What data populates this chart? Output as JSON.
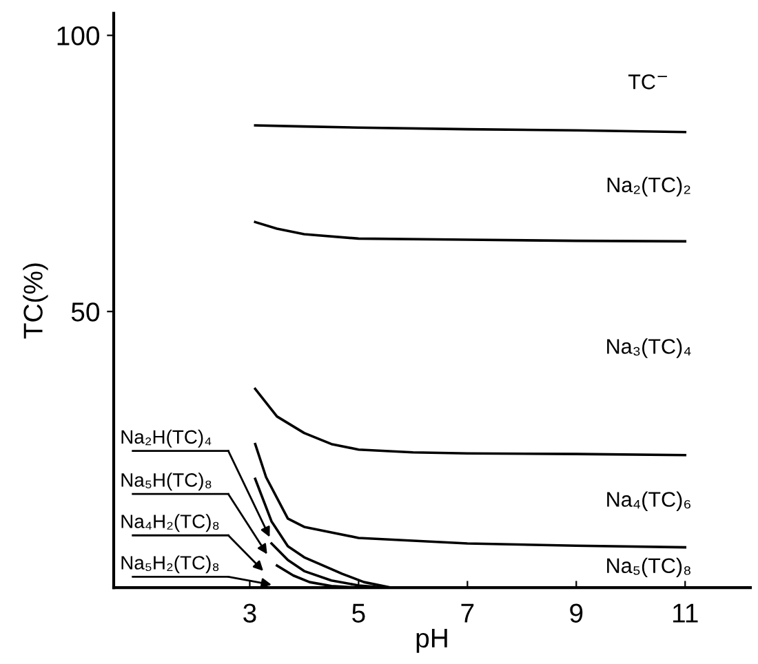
{
  "chart_data": {
    "type": "line",
    "xlabel": "pH",
    "ylabel": "TC(%)",
    "xlim": [
      0.5,
      12.2
    ],
    "ylim": [
      0,
      104
    ],
    "xticks": [
      3,
      5,
      7,
      9,
      11
    ],
    "yticks": [
      50,
      100
    ],
    "grid": false,
    "legend": false,
    "marker": "none",
    "line_style": "solid",
    "series": [
      {
        "color": "#000000",
        "x": [
          3.1,
          4,
          5,
          7,
          9,
          11
        ],
        "values": [
          83.7,
          83.5,
          83.3,
          83,
          82.8,
          82.5
        ]
      },
      {
        "color": "#000000",
        "x": [
          3.1,
          3.5,
          4,
          5,
          7,
          9,
          11
        ],
        "values": [
          66.2,
          65,
          64,
          63.2,
          63,
          62.8,
          62.7
        ]
      },
      {
        "color": "#000000",
        "x": [
          3.1,
          3.5,
          4,
          4.5,
          5,
          6,
          7,
          9,
          11
        ],
        "values": [
          36,
          31,
          28,
          26,
          25,
          24.5,
          24.3,
          24.2,
          24
        ]
      },
      {
        "color": "#000000",
        "x": [
          3.1,
          3.3,
          3.7,
          4,
          4.5,
          5,
          6,
          7,
          9,
          11
        ],
        "values": [
          26,
          20,
          12.5,
          11,
          10,
          9,
          8.5,
          8,
          7.6,
          7.3
        ]
      },
      {
        "color": "#000000",
        "x": [
          3.1,
          3.4,
          3.7,
          4,
          4.3,
          4.7,
          5.1,
          5.6
        ],
        "values": [
          19.7,
          12,
          7.5,
          5.5,
          4.2,
          2.5,
          1,
          0
        ]
      },
      {
        "color": "#000000",
        "x": [
          3.4,
          3.7,
          4,
          4.5,
          5,
          5.5
        ],
        "values": [
          8,
          5,
          3,
          1.3,
          0.4,
          0
        ]
      },
      {
        "color": "#000000",
        "x": [
          3.5,
          3.8,
          4.1,
          4.5,
          5
        ],
        "values": [
          4,
          2.2,
          1,
          0.3,
          0
        ]
      }
    ],
    "annotations": [
      "TC$^{−}$",
      "Na₂(TC)₂",
      "Na₃(TC)₄",
      "Na₄(TC)₆",
      "Na₅(TC)₈",
      "Na₂H(TC)₄",
      "Na₅H(TC)₈",
      "Na₄H₂(TC)₈",
      "Na₅H₂(TC)₈"
    ]
  }
}
